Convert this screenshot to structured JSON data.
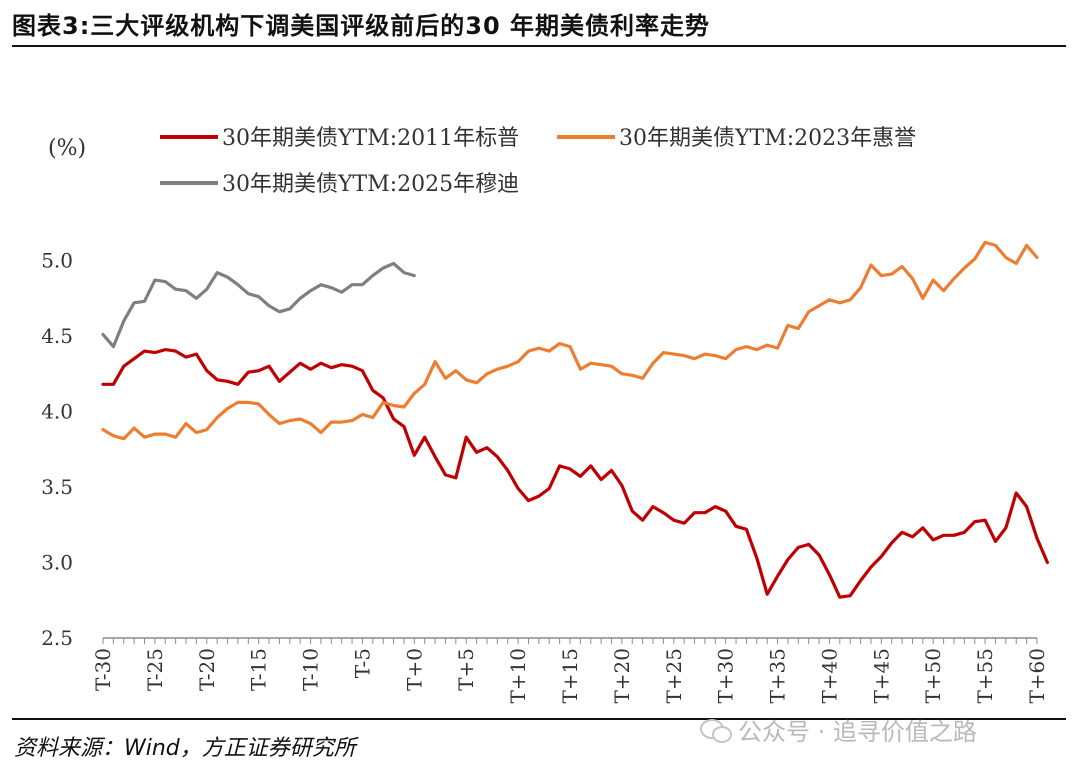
{
  "title": "图表3:三大评级机构下调美国评级前后的30 年期美债利率走势",
  "source": "资料来源：Wind，方正证券研究所",
  "watermark": "公众号 · 追寻价值之路",
  "chart_data": {
    "type": "line",
    "ylabel": "(%)",
    "ylim": [
      2.5,
      5.5
    ],
    "yticks": [
      "2.5",
      "3.0",
      "3.5",
      "4.0",
      "4.5",
      "5.0"
    ],
    "xlim": [
      -30,
      60
    ],
    "xticks": [
      "T-30",
      "T-25",
      "T-20",
      "T-15",
      "T-10",
      "T-5",
      "T+0",
      "T+5",
      "T+10",
      "T+15",
      "T+20",
      "T+25",
      "T+30",
      "T+35",
      "T+40",
      "T+45",
      "T+50",
      "T+55",
      "T+60"
    ],
    "legend_position": "top",
    "grid": false,
    "series": [
      {
        "name": "30年期美债YTM:2011年标普",
        "color": "#c00000",
        "x_start": -30,
        "values": [
          4.18,
          4.18,
          4.3,
          4.35,
          4.4,
          4.39,
          4.41,
          4.4,
          4.36,
          4.38,
          4.27,
          4.21,
          4.2,
          4.18,
          4.26,
          4.27,
          4.3,
          4.2,
          4.26,
          4.32,
          4.28,
          4.32,
          4.29,
          4.31,
          4.3,
          4.27,
          4.14,
          4.09,
          3.95,
          3.9,
          3.71,
          3.83,
          3.7,
          3.58,
          3.56,
          3.83,
          3.73,
          3.76,
          3.7,
          3.61,
          3.49,
          3.41,
          3.44,
          3.49,
          3.64,
          3.62,
          3.57,
          3.64,
          3.55,
          3.61,
          3.51,
          3.34,
          3.28,
          3.37,
          3.33,
          3.28,
          3.26,
          3.33,
          3.33,
          3.37,
          3.34,
          3.24,
          3.22,
          3.03,
          2.79,
          2.91,
          3.02,
          3.1,
          3.12,
          3.05,
          2.92,
          2.77,
          2.78,
          2.88,
          2.97,
          3.04,
          3.13,
          3.2,
          3.17,
          3.23,
          3.15,
          3.18,
          3.18,
          3.2,
          3.27,
          3.28,
          3.14,
          3.23,
          3.46,
          3.37,
          3.16,
          3.0
        ]
      },
      {
        "name": "30年期美债YTM:2023年惠誉",
        "color": "#ed7d31",
        "x_start": -30,
        "values": [
          3.88,
          3.84,
          3.82,
          3.89,
          3.83,
          3.85,
          3.85,
          3.83,
          3.92,
          3.86,
          3.88,
          3.96,
          4.02,
          4.06,
          4.06,
          4.05,
          3.98,
          3.92,
          3.94,
          3.95,
          3.92,
          3.86,
          3.93,
          3.93,
          3.94,
          3.98,
          3.96,
          4.06,
          4.04,
          4.03,
          4.12,
          4.18,
          4.33,
          4.22,
          4.27,
          4.21,
          4.19,
          4.25,
          4.28,
          4.3,
          4.33,
          4.4,
          4.42,
          4.4,
          4.45,
          4.43,
          4.28,
          4.32,
          4.31,
          4.3,
          4.25,
          4.24,
          4.22,
          4.32,
          4.39,
          4.38,
          4.37,
          4.35,
          4.38,
          4.37,
          4.35,
          4.41,
          4.43,
          4.41,
          4.44,
          4.42,
          4.57,
          4.55,
          4.66,
          4.7,
          4.74,
          4.72,
          4.74,
          4.82,
          4.97,
          4.9,
          4.91,
          4.96,
          4.88,
          4.75,
          4.87,
          4.8,
          4.88,
          4.95,
          5.01,
          5.12,
          5.1,
          5.02,
          4.98,
          5.1,
          5.02
        ]
      },
      {
        "name": "30年期美债YTM:2025年穆迪",
        "color": "#7f7f7f",
        "x_start": -30,
        "values": [
          4.51,
          4.43,
          4.6,
          4.72,
          4.73,
          4.87,
          4.86,
          4.81,
          4.8,
          4.75,
          4.81,
          4.92,
          4.89,
          4.84,
          4.78,
          4.76,
          4.7,
          4.66,
          4.68,
          4.75,
          4.8,
          4.84,
          4.82,
          4.79,
          4.84,
          4.84,
          4.9,
          4.95,
          4.98,
          4.92,
          4.9
        ]
      }
    ]
  }
}
